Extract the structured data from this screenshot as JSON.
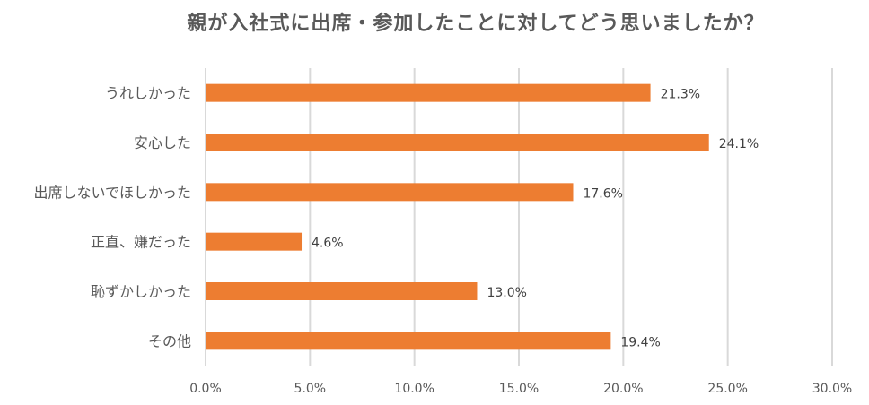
{
  "chart_data": {
    "type": "bar",
    "orientation": "horizontal",
    "title": "親が入社式に出席・参加したことに対してどう思いましたか？",
    "categories": [
      "うれしかった",
      "安心した",
      "出席しないでほしかった",
      "正直、嫌だった",
      "恥ずかしかった",
      "その他"
    ],
    "values": [
      21.3,
      24.1,
      17.6,
      4.6,
      13.0,
      19.4
    ],
    "data_labels": [
      "21.3%",
      "24.1%",
      "17.6%",
      "4.6%",
      "13.0%",
      "19.4%"
    ],
    "xlim": [
      0,
      30
    ],
    "xticks": [
      0,
      5,
      10,
      15,
      20,
      25,
      30
    ],
    "xtick_labels": [
      "0.0%",
      "5.0%",
      "10.0%",
      "15.0%",
      "20.0%",
      "25.0%",
      "30.0%"
    ],
    "grid": true,
    "legend": "none",
    "bar_color": "#ED7D31"
  }
}
